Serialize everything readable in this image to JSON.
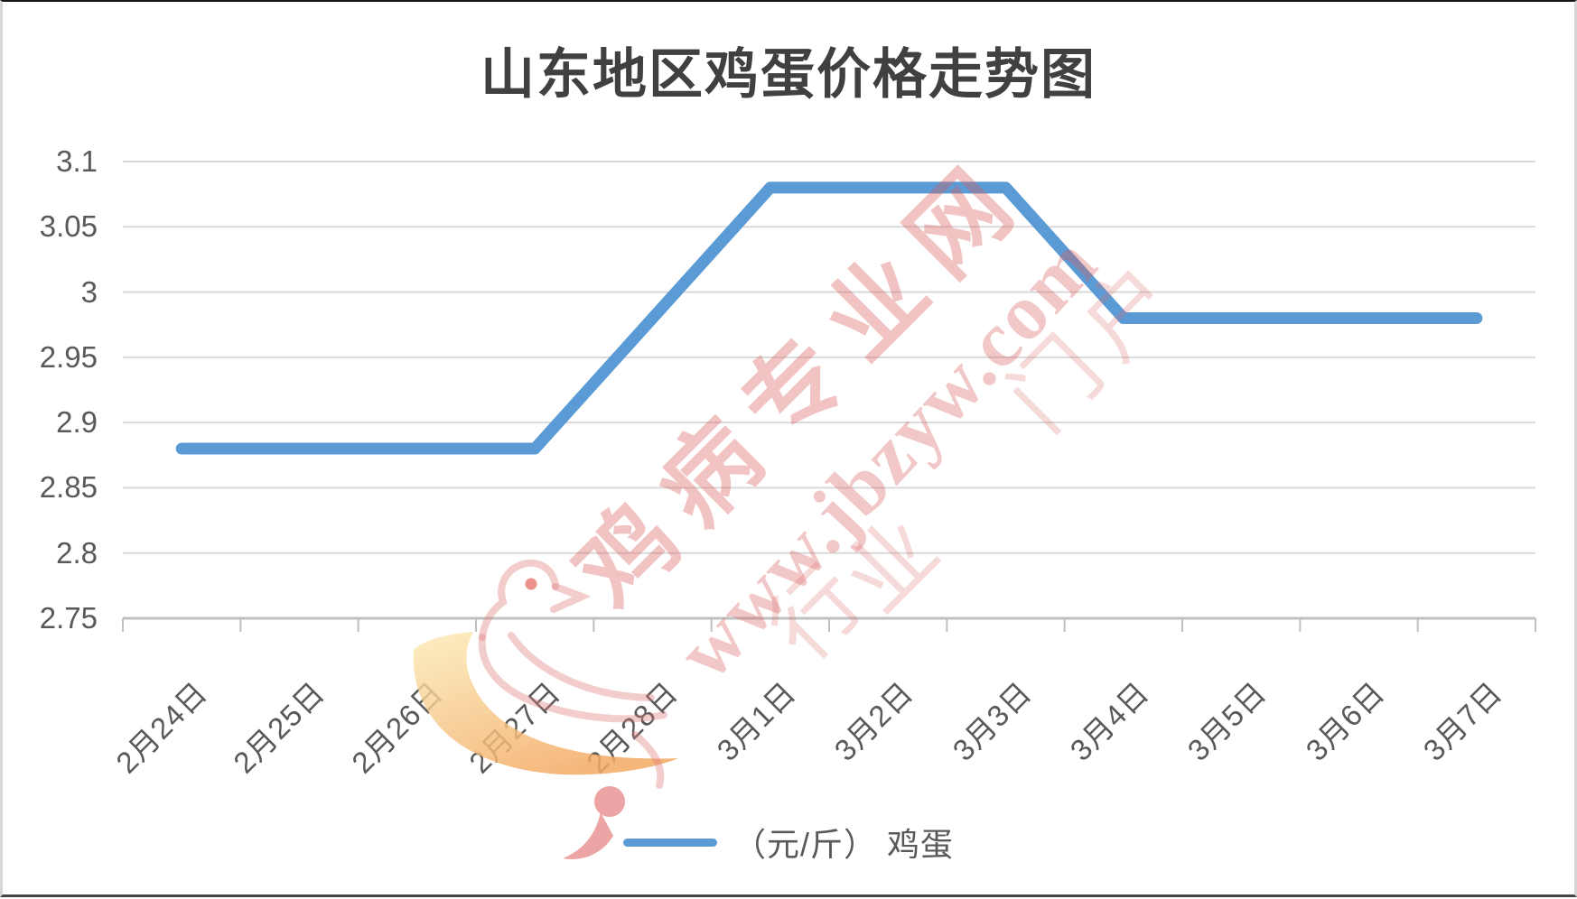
{
  "title": "山东地区鸡蛋价格走势图",
  "chart_data": {
    "type": "line",
    "title": "山东地区鸡蛋价格走势图",
    "categories": [
      "2月24日",
      "2月25日",
      "2月26日",
      "2月27日",
      "2月28日",
      "3月1日",
      "3月2日",
      "3月3日",
      "3月4日",
      "3月5日",
      "3月6日",
      "3月7日"
    ],
    "series": [
      {
        "name": "（元/斤） 鸡蛋",
        "values": [
          2.88,
          2.88,
          2.88,
          2.88,
          2.98,
          3.08,
          3.08,
          3.08,
          2.98,
          2.98,
          2.98,
          2.98
        ]
      }
    ],
    "xlabel": "",
    "ylabel": "",
    "ylim": [
      2.75,
      3.1
    ],
    "yticks": [
      {
        "label": "3.1",
        "value": 3.1
      },
      {
        "label": "3.05",
        "value": 3.05
      },
      {
        "label": "3",
        "value": 3.0
      },
      {
        "label": "2.95",
        "value": 2.95
      },
      {
        "label": "2.9",
        "value": 2.9
      },
      {
        "label": "2.85",
        "value": 2.85
      },
      {
        "label": "2.8",
        "value": 2.8
      },
      {
        "label": "2.75",
        "value": 2.75
      }
    ],
    "grid": "horizontal",
    "legend_position": "bottom",
    "x_label_rotation_deg": 45,
    "colors": {
      "line": "#5B9BD5",
      "grid": "#D9D9D9",
      "axis": "#C0C0C0",
      "tick_label": "#595959",
      "title": "#404040"
    }
  },
  "legend": {
    "label": "（元/斤） 鸡蛋",
    "swatch_color": "#5B9BD5"
  },
  "watermark": {
    "brand": "鸡病专业网",
    "url": "www.jbzyw.com",
    "faint_chars": [
      "行",
      "业",
      "门",
      "户"
    ],
    "color": "#D75A5A"
  }
}
